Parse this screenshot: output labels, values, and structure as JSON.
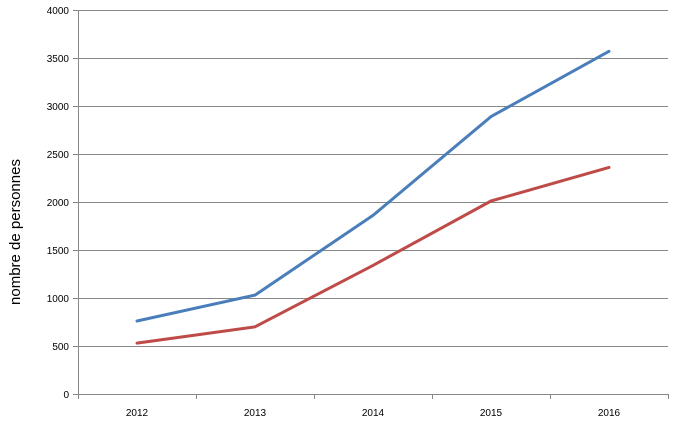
{
  "chart_data": {
    "type": "line",
    "x": [
      2012,
      2013,
      2014,
      2015,
      2016
    ],
    "categories": [
      "2012",
      "2013",
      "2014",
      "2015",
      "2016"
    ],
    "series": [
      {
        "values": [
          760,
          1030,
          1860,
          2890,
          3570
        ],
        "color": "#4a7ebb"
      },
      {
        "values": [
          530,
          700,
          1340,
          2010,
          2360
        ],
        "color": "#be4b48"
      }
    ],
    "title": "",
    "xlabel": "",
    "ylabel": "nombre de personnes",
    "ylim": [
      0,
      4000
    ],
    "yticks": [
      0,
      500,
      1000,
      1500,
      2000,
      2500,
      3000,
      3500,
      4000
    ],
    "ytick_labels": [
      "0",
      "500",
      "1000",
      "1500",
      "2000",
      "2500",
      "3000",
      "3500",
      "4000"
    ],
    "grid": "horizontal",
    "legend": "none"
  }
}
